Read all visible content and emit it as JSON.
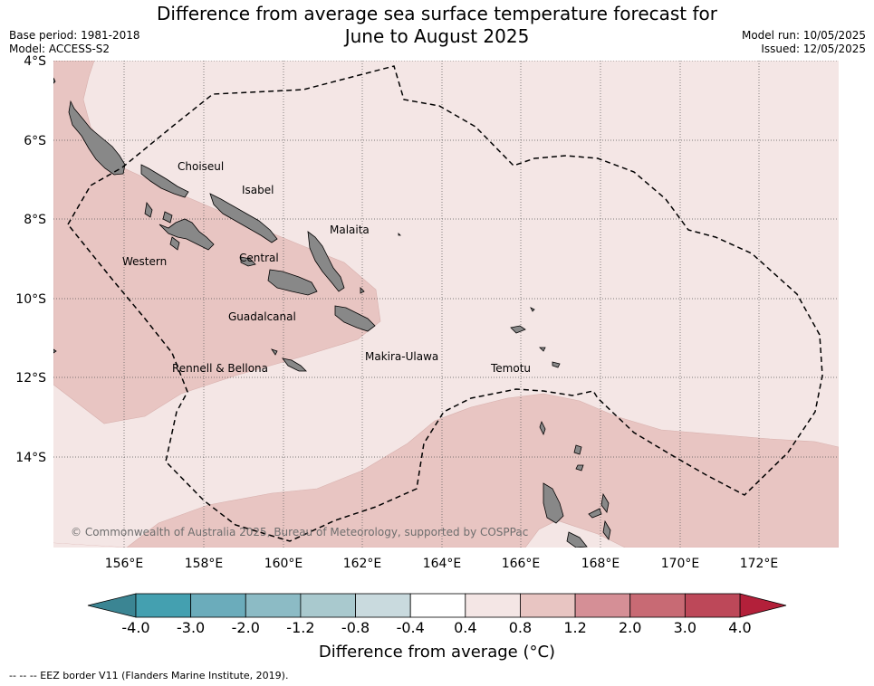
{
  "title": {
    "line1": "Difference from average sea surface temperature forecast for",
    "line2": "June to August 2025"
  },
  "meta": {
    "base_period": "Base period: 1981-2018",
    "model": "Model: ACCESS-S2",
    "model_run": "Model run: 10/05/2025",
    "issued": "Issued: 12/05/2025"
  },
  "axes": {
    "lat_ticks": [
      "4°S",
      "6°S",
      "8°S",
      "10°S",
      "12°S",
      "14°S"
    ],
    "lon_ticks": [
      "156°E",
      "158°E",
      "160°E",
      "162°E",
      "164°E",
      "166°E",
      "168°E",
      "170°E",
      "172°E"
    ]
  },
  "places": {
    "choiseul": "Choiseul",
    "isabel": "Isabel",
    "malaita": "Malaita",
    "western": "Western",
    "central": "Central",
    "guadalcanal": "Guadalcanal",
    "makira": "Makira-Ulawa",
    "rennell": "Rennell & Bellona",
    "temotu": "Temotu"
  },
  "copyright": "© Commonwealth of Australia 2025, Bureau of Meteorology, supported by COSPPac",
  "colorbar": {
    "title": "Difference from average (°C)",
    "labels": [
      "-4.0",
      "-3.0",
      "-2.0",
      "-1.2",
      "-0.8",
      "-0.4",
      "0.4",
      "0.8",
      "1.2",
      "2.0",
      "3.0",
      "4.0"
    ],
    "colors": {
      "under": "#3b8593",
      "bins": [
        "#44a0b0",
        "#6bacbb",
        "#8cbbc5",
        "#a9c9ce",
        "#c9dade",
        "#ffffff",
        "#f4e6e5",
        "#e8c5c2",
        "#d58f96",
        "#c86a74",
        "#bd4859"
      ],
      "over": "#b3203a"
    }
  },
  "legend": {
    "eez": "-- -- -- EEZ border V11 (Flanders Marine Institute, 2019)."
  }
}
